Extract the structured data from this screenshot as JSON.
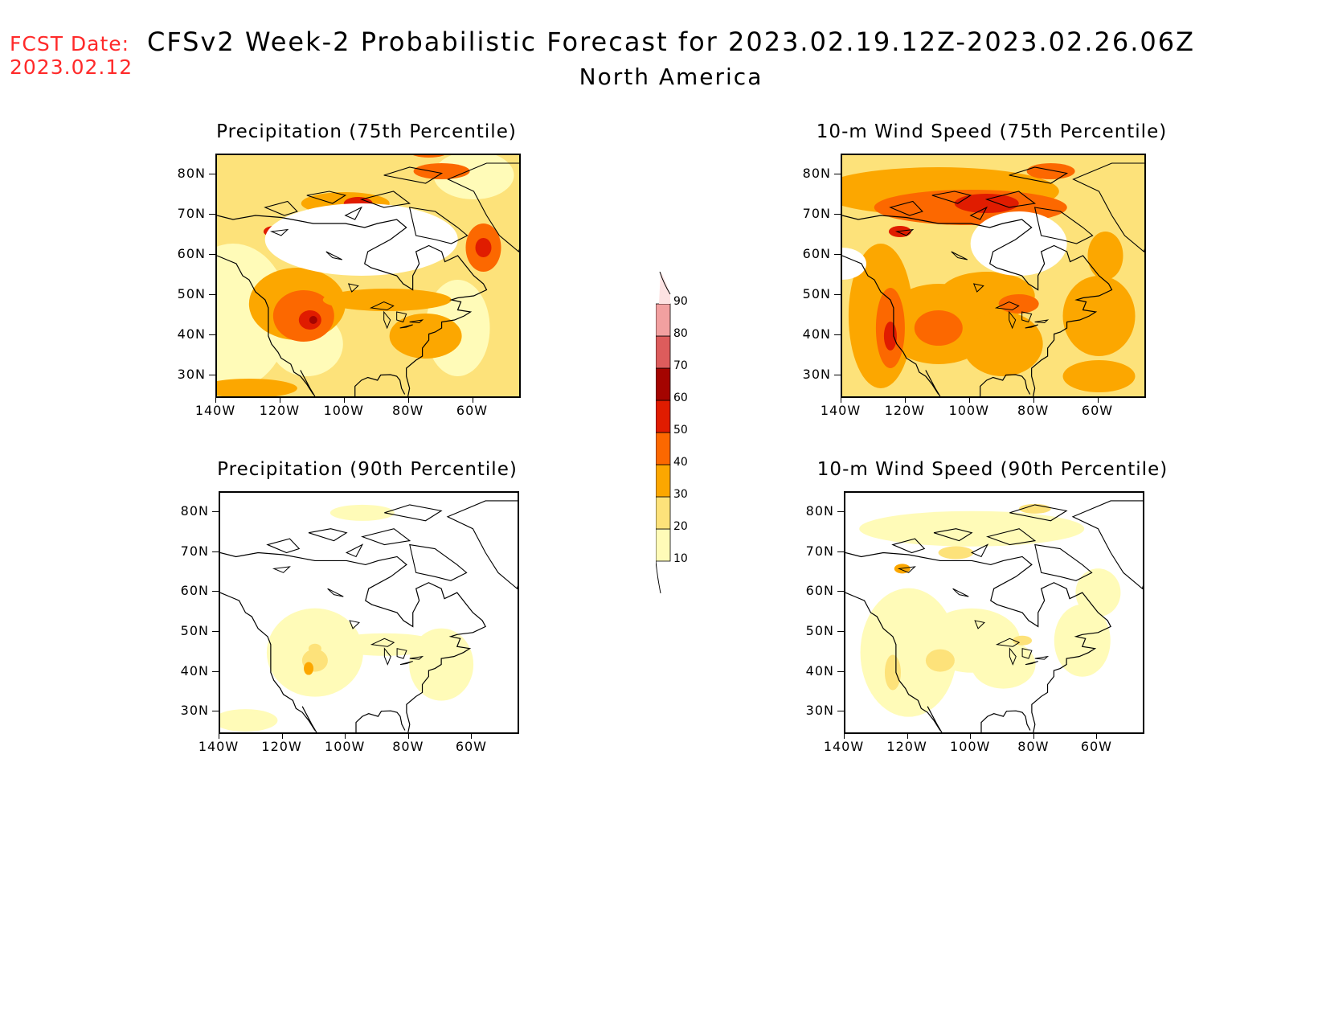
{
  "header": {
    "fcst_label": "FCST Date:",
    "fcst_date": "2023.02.12",
    "title": "CFSv2 Week-2 Probabilistic Forecast for 2023.02.19.12Z-2023.02.26.06Z",
    "subtitle": "North America"
  },
  "axes": {
    "lat_labels": [
      "80N",
      "70N",
      "60N",
      "50N",
      "40N",
      "30N"
    ],
    "lon_labels": [
      "140W",
      "120W",
      "100W",
      "80W",
      "60W"
    ]
  },
  "panels": [
    {
      "id": "precip75",
      "title": "Precipitation (75th Percentile)",
      "variable": "precipitation",
      "percentile": 75,
      "max_category": 60
    },
    {
      "id": "wind75",
      "title": "10-m Wind Speed (75th Percentile)",
      "variable": "wind speed",
      "percentile": 75,
      "max_category": 60
    },
    {
      "id": "precip90",
      "title": "Precipitation (90th Percentile)",
      "variable": "precipitation",
      "percentile": 90,
      "max_category": 30
    },
    {
      "id": "wind90",
      "title": "10-m Wind Speed (90th Percentile)",
      "variable": "wind speed",
      "percentile": 90,
      "max_category": 30
    }
  ],
  "colorbar": {
    "levels": [
      "10",
      "20",
      "30",
      "40",
      "50",
      "60",
      "70",
      "80",
      "90"
    ],
    "colors": [
      "#fffbb8",
      "#fde27a",
      "#fca700",
      "#fc6800",
      "#e01c00",
      "#a40400",
      "#dd5c5c",
      "#f2a0a0",
      "#fde2e2"
    ]
  }
}
